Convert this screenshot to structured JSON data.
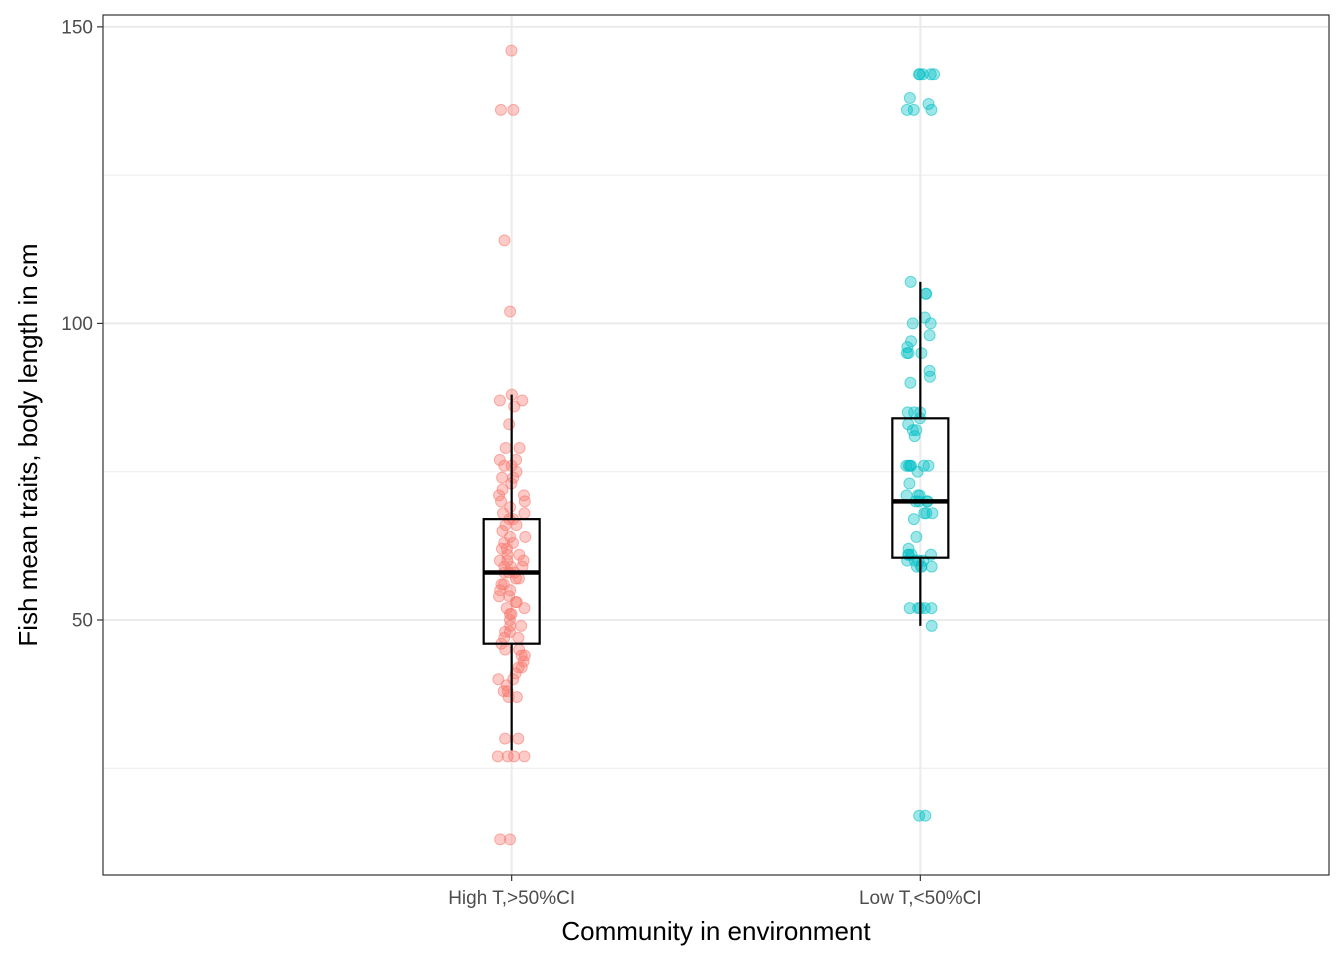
{
  "chart_data": {
    "type": "box-jitter",
    "title": "",
    "xlabel": "Community in environment",
    "ylabel": "Fish mean traits, body length in cm",
    "ylim": [
      7,
      152
    ],
    "yticks": [
      50,
      100,
      150
    ],
    "grid": true,
    "legend": "none",
    "categories": [
      "High T,>50%CI",
      "Low T,<50%CI"
    ],
    "colors": [
      "#F8766D",
      "#00BFC4"
    ],
    "boxes": [
      {
        "category": "High T,>50%CI",
        "q1": 46,
        "median": 58,
        "q3": 67,
        "whisker_low": 28,
        "whisker_high": 88
      },
      {
        "category": "Low T,<50%CI",
        "q1": 60.5,
        "median": 70,
        "q3": 84,
        "whisker_low": 49,
        "whisker_high": 107
      }
    ],
    "points": [
      {
        "category": "High T,>50%CI",
        "values": [
          146,
          136,
          136,
          114,
          102,
          88,
          87,
          87,
          86,
          83,
          79,
          79,
          77,
          77,
          76,
          76,
          75,
          74,
          74,
          73,
          72,
          71,
          71,
          70,
          70,
          69,
          68,
          68,
          67,
          67,
          66,
          66,
          65,
          64,
          64,
          63,
          63,
          62,
          62,
          61,
          61,
          60,
          60,
          60,
          59,
          59,
          59,
          58,
          58,
          58,
          57,
          57,
          56,
          56,
          55,
          55,
          54,
          54,
          53,
          53,
          52,
          52,
          51,
          51,
          50,
          49,
          49,
          48,
          48,
          47,
          47,
          46,
          45,
          45,
          44,
          44,
          43,
          42,
          42,
          41,
          40,
          40,
          39,
          38,
          38,
          37,
          37,
          30,
          30,
          27,
          27,
          27,
          27,
          13,
          13
        ]
      },
      {
        "category": "Low T,<50%CI",
        "values": [
          142,
          142,
          142,
          142,
          142,
          138,
          137,
          136,
          136,
          136,
          107,
          105,
          105,
          101,
          100,
          100,
          98,
          97,
          96,
          95,
          95,
          95,
          92,
          91,
          90,
          85,
          85,
          85,
          84,
          83,
          82,
          82,
          81,
          76,
          76,
          76,
          76,
          76,
          76,
          75,
          73,
          71,
          71,
          71,
          70,
          70,
          70,
          70,
          68,
          68,
          68,
          67,
          64,
          62,
          61,
          61,
          61,
          61,
          60,
          60,
          60,
          60,
          59,
          59,
          59,
          59,
          52,
          52,
          52,
          52,
          52,
          49,
          17,
          17
        ]
      }
    ]
  }
}
